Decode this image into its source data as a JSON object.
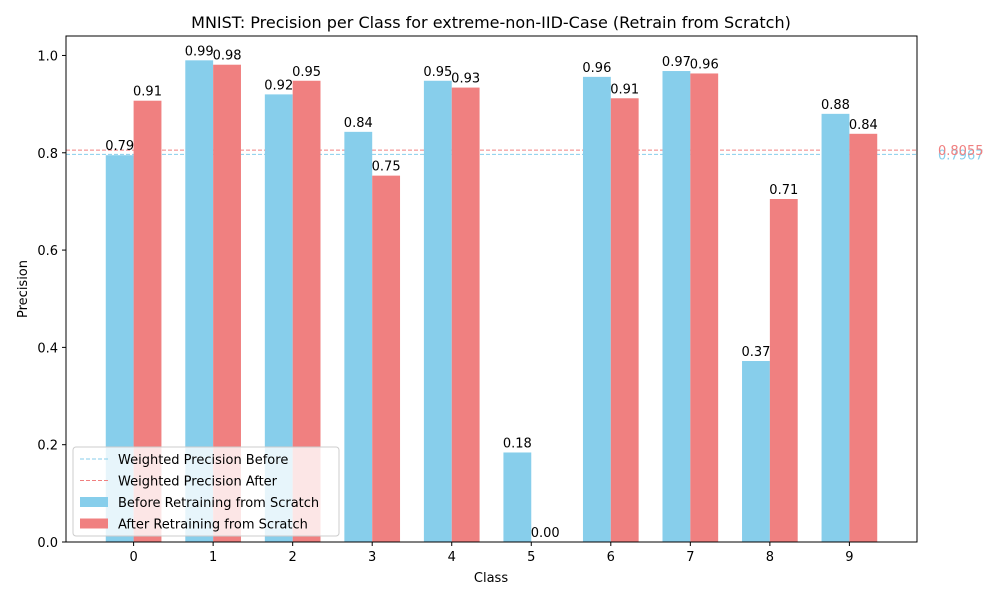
{
  "chart_data": {
    "type": "bar",
    "title": "MNIST: Precision per Class for extreme-non-IID-Case (Retrain from Scratch)",
    "xlabel": "Class",
    "ylabel": "Precision",
    "categories": [
      "0",
      "1",
      "2",
      "3",
      "4",
      "5",
      "6",
      "7",
      "8",
      "9"
    ],
    "ylim": [
      0,
      1.04
    ],
    "yticks": [
      0.0,
      0.2,
      0.4,
      0.6,
      0.8,
      1.0
    ],
    "ytick_labels": [
      "0.0",
      "0.2",
      "0.4",
      "0.6",
      "0.8",
      "1.0"
    ],
    "grid": false,
    "legend_position": "lower-left",
    "series": [
      {
        "name": "Before Retraining from Scratch",
        "color": "#87ceeb",
        "values": [
          0.795,
          0.99,
          0.92,
          0.843,
          0.948,
          0.184,
          0.956,
          0.968,
          0.372,
          0.88
        ],
        "labels": [
          "0.79",
          "0.99",
          "0.92",
          "0.84",
          "0.95",
          "0.18",
          "0.96",
          "0.97",
          "0.37",
          "0.88"
        ]
      },
      {
        "name": "After Retraining from Scratch",
        "color": "#f08080",
        "values": [
          0.907,
          0.981,
          0.948,
          0.753,
          0.934,
          0.0,
          0.912,
          0.963,
          0.705,
          0.839
        ],
        "labels": [
          "0.91",
          "0.98",
          "0.95",
          "0.75",
          "0.93",
          "0.00",
          "0.91",
          "0.96",
          "0.71",
          "0.84"
        ]
      }
    ],
    "reference_lines": [
      {
        "name": "Weighted Precision Before",
        "value": 0.7967,
        "label": "0.7967",
        "color": "#87ceeb"
      },
      {
        "name": "Weighted Precision After",
        "value": 0.8055,
        "label": "0.8055",
        "color": "#f08080"
      }
    ]
  }
}
